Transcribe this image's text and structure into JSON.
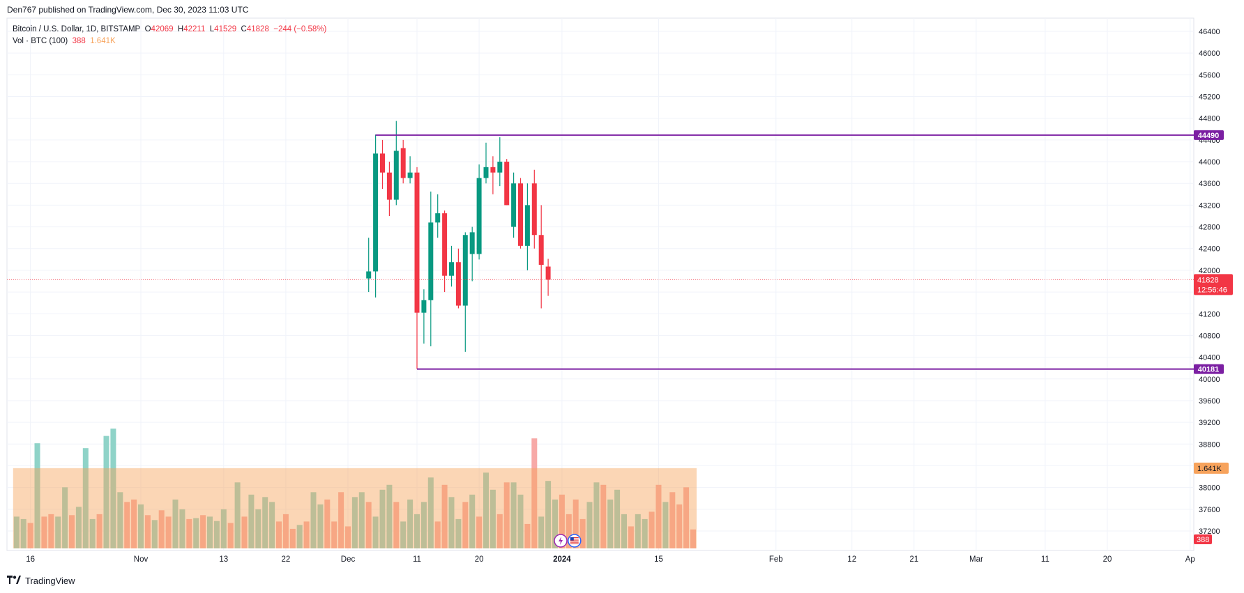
{
  "header": {
    "published": "Den767 published on TradingView.com, Dec 30, 2023 11:03 UTC"
  },
  "legend": {
    "symbol": "Bitcoin / U.S. Dollar, 1D, BITSTAMP",
    "o_label": "O",
    "o": "42069",
    "h_label": "H",
    "h": "42211",
    "l_label": "L",
    "l": "41529",
    "c_label": "C",
    "c": "41828",
    "change": "−244 (−0.58%)",
    "vol_label": "Vol · BTC (100)",
    "vol_value": "388",
    "vol_ma": "1.641K"
  },
  "footer": {
    "brand": "TradingView",
    "logo_icon": "tradingview-logo-icon"
  },
  "chart_data": {
    "type": "candlestick",
    "title": "Bitcoin / U.S. Dollar, 1D, BITSTAMP",
    "y_ticks": [
      37200,
      37600,
      38000,
      38400,
      38800,
      39200,
      39600,
      40000,
      40400,
      40800,
      41200,
      41600,
      42000,
      42400,
      42800,
      43200,
      43600,
      44000,
      44400,
      44800,
      45200,
      45600,
      46000,
      46400
    ],
    "y_tick_labels": [
      "37200",
      "37600",
      "38000",
      "38400",
      "38800",
      "39200",
      "39600",
      "40000",
      "40400",
      "40800",
      "41200",
      "41600",
      "42000",
      "42400",
      "42800",
      "43200",
      "43600",
      "44000",
      "44400",
      "44800",
      "45200",
      "45600",
      "46000",
      "46400"
    ],
    "ylim": [
      36900,
      46700
    ],
    "x_labels": [
      {
        "label": "16",
        "date": "2023-10-16"
      },
      {
        "label": "Nov",
        "date": "2023-11-01"
      },
      {
        "label": "13",
        "date": "2023-11-13"
      },
      {
        "label": "22",
        "date": "2023-11-22"
      },
      {
        "label": "Dec",
        "date": "2023-12-01"
      },
      {
        "label": "11",
        "date": "2023-12-11"
      },
      {
        "label": "20",
        "date": "2023-12-20"
      },
      {
        "label": "2024",
        "date": "2024-01-01"
      },
      {
        "label": "15",
        "date": "2024-01-15"
      },
      {
        "label": "Feb",
        "date": "2024-02-01"
      },
      {
        "label": "12",
        "date": "2024-02-12"
      },
      {
        "label": "21",
        "date": "2024-02-21"
      },
      {
        "label": "Mar",
        "date": "2024-03-01"
      },
      {
        "label": "11",
        "date": "2024-03-11"
      },
      {
        "label": "20",
        "date": "2024-03-20"
      },
      {
        "label": "Ap",
        "date": "2024-04-01"
      }
    ],
    "start_date": "2023-12-04",
    "candles": [
      {
        "o": 41850,
        "h": 42600,
        "l": 41600,
        "c": 41980
      },
      {
        "o": 41980,
        "h": 44500,
        "l": 41500,
        "c": 44150
      },
      {
        "o": 44150,
        "h": 44400,
        "l": 43500,
        "c": 43800
      },
      {
        "o": 43800,
        "h": 44000,
        "l": 43000,
        "c": 43300
      },
      {
        "o": 43300,
        "h": 44750,
        "l": 43200,
        "c": 44200
      },
      {
        "o": 44250,
        "h": 44400,
        "l": 43600,
        "c": 43700
      },
      {
        "o": 43700,
        "h": 44100,
        "l": 43600,
        "c": 43800
      },
      {
        "o": 43800,
        "h": 43900,
        "l": 40181,
        "c": 41220
      },
      {
        "o": 41220,
        "h": 41650,
        "l": 40650,
        "c": 41450
      },
      {
        "o": 41450,
        "h": 43450,
        "l": 40600,
        "c": 42880
      },
      {
        "o": 42880,
        "h": 43400,
        "l": 42600,
        "c": 43050
      },
      {
        "o": 43050,
        "h": 43100,
        "l": 41600,
        "c": 41900
      },
      {
        "o": 41900,
        "h": 42450,
        "l": 41700,
        "c": 42150
      },
      {
        "o": 42150,
        "h": 42400,
        "l": 41300,
        "c": 41350
      },
      {
        "o": 41350,
        "h": 42700,
        "l": 40500,
        "c": 42650
      },
      {
        "o": 42300,
        "h": 42800,
        "l": 41800,
        "c": 42700
      },
      {
        "o": 42300,
        "h": 43950,
        "l": 42200,
        "c": 43700
      },
      {
        "o": 43700,
        "h": 44350,
        "l": 43600,
        "c": 43900
      },
      {
        "o": 43900,
        "h": 44100,
        "l": 43400,
        "c": 43800
      },
      {
        "o": 43800,
        "h": 44450,
        "l": 43550,
        "c": 44000
      },
      {
        "o": 44000,
        "h": 44050,
        "l": 43200,
        "c": 43200
      },
      {
        "o": 42800,
        "h": 43800,
        "l": 42600,
        "c": 43600
      },
      {
        "o": 43600,
        "h": 43700,
        "l": 42400,
        "c": 42450
      },
      {
        "o": 42450,
        "h": 43600,
        "l": 42000,
        "c": 43200
      },
      {
        "o": 43600,
        "h": 43850,
        "l": 42400,
        "c": 42650
      },
      {
        "o": 42650,
        "h": 43200,
        "l": 41300,
        "c": 42100
      },
      {
        "o": 42069,
        "h": 42211,
        "l": 41529,
        "c": 41828
      }
    ],
    "volume_ylim": [
      0,
      2950
    ],
    "volume_start_date": "2023-10-14",
    "volume": [
      {
        "v": 650,
        "up": true
      },
      {
        "v": 600,
        "up": true
      },
      {
        "v": 520,
        "up": false
      },
      {
        "v": 2150,
        "up": true
      },
      {
        "v": 650,
        "up": false
      },
      {
        "v": 700,
        "up": false
      },
      {
        "v": 650,
        "up": true
      },
      {
        "v": 1250,
        "up": true
      },
      {
        "v": 680,
        "up": false
      },
      {
        "v": 850,
        "up": true
      },
      {
        "v": 2050,
        "up": true
      },
      {
        "v": 600,
        "up": true
      },
      {
        "v": 700,
        "up": false
      },
      {
        "v": 2300,
        "up": true
      },
      {
        "v": 2450,
        "up": true
      },
      {
        "v": 1150,
        "up": true
      },
      {
        "v": 950,
        "up": false
      },
      {
        "v": 1000,
        "up": false
      },
      {
        "v": 900,
        "up": true
      },
      {
        "v": 680,
        "up": false
      },
      {
        "v": 580,
        "up": true
      },
      {
        "v": 780,
        "up": false
      },
      {
        "v": 650,
        "up": false
      },
      {
        "v": 1000,
        "up": true
      },
      {
        "v": 800,
        "up": true
      },
      {
        "v": 600,
        "up": false
      },
      {
        "v": 620,
        "up": true
      },
      {
        "v": 680,
        "up": false
      },
      {
        "v": 650,
        "up": true
      },
      {
        "v": 560,
        "up": true
      },
      {
        "v": 800,
        "up": true
      },
      {
        "v": 520,
        "up": false
      },
      {
        "v": 1350,
        "up": true
      },
      {
        "v": 650,
        "up": false
      },
      {
        "v": 1100,
        "up": true
      },
      {
        "v": 800,
        "up": true
      },
      {
        "v": 1050,
        "up": true
      },
      {
        "v": 950,
        "up": true
      },
      {
        "v": 550,
        "up": false
      },
      {
        "v": 700,
        "up": false
      },
      {
        "v": 400,
        "up": false
      },
      {
        "v": 480,
        "up": true
      },
      {
        "v": 550,
        "up": false
      },
      {
        "v": 1150,
        "up": true
      },
      {
        "v": 900,
        "up": true
      },
      {
        "v": 1000,
        "up": false
      },
      {
        "v": 550,
        "up": false
      },
      {
        "v": 1150,
        "up": false
      },
      {
        "v": 450,
        "up": false
      },
      {
        "v": 1050,
        "up": true
      },
      {
        "v": 1150,
        "up": true
      },
      {
        "v": 950,
        "up": false
      },
      {
        "v": 650,
        "up": true
      },
      {
        "v": 1200,
        "up": true
      },
      {
        "v": 1300,
        "up": true
      },
      {
        "v": 950,
        "up": false
      },
      {
        "v": 550,
        "up": true
      },
      {
        "v": 1000,
        "up": true
      },
      {
        "v": 700,
        "up": true
      },
      {
        "v": 950,
        "up": true
      },
      {
        "v": 1450,
        "up": true
      },
      {
        "v": 550,
        "up": false
      },
      {
        "v": 1300,
        "up": false
      },
      {
        "v": 1050,
        "up": true
      },
      {
        "v": 600,
        "up": true
      },
      {
        "v": 950,
        "up": false
      },
      {
        "v": 1100,
        "up": true
      },
      {
        "v": 650,
        "up": false
      },
      {
        "v": 1550,
        "up": true
      },
      {
        "v": 1200,
        "up": true
      },
      {
        "v": 700,
        "up": false
      },
      {
        "v": 1350,
        "up": false
      },
      {
        "v": 1350,
        "up": true
      },
      {
        "v": 1100,
        "up": true
      },
      {
        "v": 500,
        "up": false
      },
      {
        "v": 2250,
        "up": false
      },
      {
        "v": 650,
        "up": true
      },
      {
        "v": 1380,
        "up": true
      },
      {
        "v": 1000,
        "up": true
      },
      {
        "v": 1100,
        "up": false
      },
      {
        "v": 700,
        "up": false
      },
      {
        "v": 1000,
        "up": false
      },
      {
        "v": 600,
        "up": false
      },
      {
        "v": 950,
        "up": true
      },
      {
        "v": 1350,
        "up": true
      },
      {
        "v": 1300,
        "up": false
      },
      {
        "v": 1000,
        "up": true
      },
      {
        "v": 1200,
        "up": true
      },
      {
        "v": 700,
        "up": true
      },
      {
        "v": 450,
        "up": false
      },
      {
        "v": 700,
        "up": true
      },
      {
        "v": 600,
        "up": true
      },
      {
        "v": 750,
        "up": false
      },
      {
        "v": 1300,
        "up": false
      },
      {
        "v": 950,
        "up": true
      },
      {
        "v": 1150,
        "up": false
      },
      {
        "v": 900,
        "up": false
      },
      {
        "v": 1250,
        "up": false
      },
      {
        "v": 388,
        "up": false
      }
    ],
    "volume_ma": {
      "value": 1641,
      "label": "1.641K"
    },
    "horizontal_levels": [
      {
        "value": 44490,
        "label": "44490",
        "start_date": "2023-12-05",
        "color": "#7b1fa2"
      },
      {
        "value": 40181,
        "label": "40181",
        "start_date": "2023-12-11",
        "color": "#7b1fa2"
      }
    ],
    "last_price": {
      "value": 41828,
      "label": "41828",
      "countdown": "12:56:46",
      "color": "#f23645"
    },
    "last_volume": {
      "label": "388",
      "color": "#f23645"
    },
    "colors": {
      "up": "#089981",
      "down": "#f23645",
      "grid": "#f0f3fa",
      "vol_up": "#8fd3c8",
      "vol_down": "#f7a9a7",
      "vol_ma": "#f7a35c"
    },
    "event_icons": [
      {
        "name": "lightning-icon",
        "date": "2023-12-31",
        "color": "#9c27b0"
      },
      {
        "name": "us-flag-icon",
        "date": "2024-01-02",
        "color": "#2962ff"
      }
    ]
  }
}
